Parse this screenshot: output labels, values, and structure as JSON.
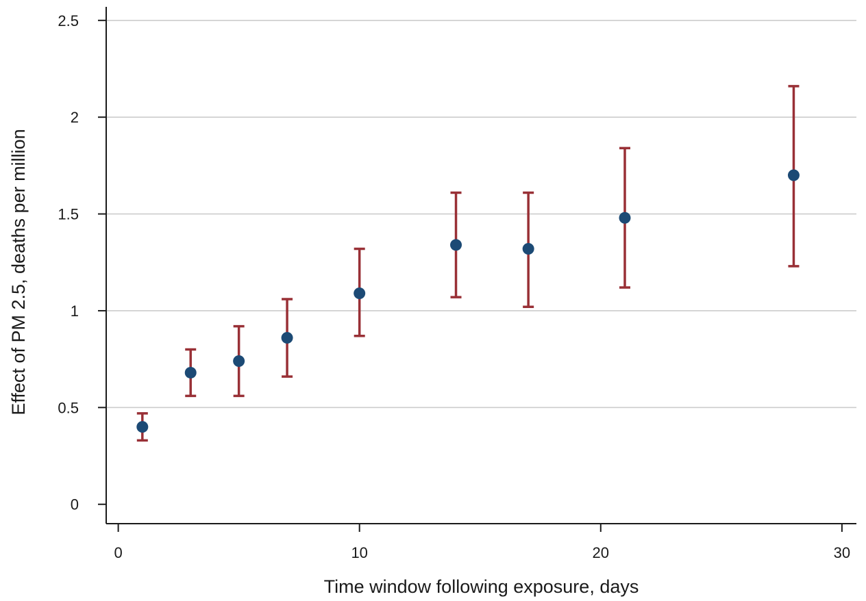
{
  "chart_data": {
    "type": "scatter",
    "title": "",
    "xlabel": "Time window following exposure, days",
    "ylabel": "Effect of PM 2.5, deaths per million",
    "xlim": [
      -0.5,
      30.6
    ],
    "ylim": [
      -0.1,
      2.57
    ],
    "xticks": [
      0,
      10,
      20,
      30
    ],
    "yticks": [
      0,
      0.5,
      1,
      1.5,
      2,
      2.5
    ],
    "xtick_labels": [
      "0",
      "10",
      "20",
      "30"
    ],
    "ytick_labels": [
      "0",
      "0.5",
      "1",
      "1.5",
      "2",
      "2.5"
    ],
    "grid": "horizontal",
    "legend": "none",
    "colors": {
      "point": "#1c4a75",
      "errorbar": "#993036",
      "grid": "#cccccc",
      "axis": "#1a1a1a"
    },
    "points": [
      {
        "x": 1,
        "y": 0.4,
        "lo": 0.33,
        "hi": 0.47
      },
      {
        "x": 3,
        "y": 0.68,
        "lo": 0.56,
        "hi": 0.8
      },
      {
        "x": 5,
        "y": 0.74,
        "lo": 0.56,
        "hi": 0.92
      },
      {
        "x": 7,
        "y": 0.86,
        "lo": 0.66,
        "hi": 1.06
      },
      {
        "x": 10,
        "y": 1.09,
        "lo": 0.87,
        "hi": 1.32
      },
      {
        "x": 14,
        "y": 1.34,
        "lo": 1.07,
        "hi": 1.61
      },
      {
        "x": 17,
        "y": 1.32,
        "lo": 1.02,
        "hi": 1.61
      },
      {
        "x": 21,
        "y": 1.48,
        "lo": 1.12,
        "hi": 1.84
      },
      {
        "x": 28,
        "y": 1.7,
        "lo": 1.23,
        "hi": 2.16
      }
    ]
  }
}
